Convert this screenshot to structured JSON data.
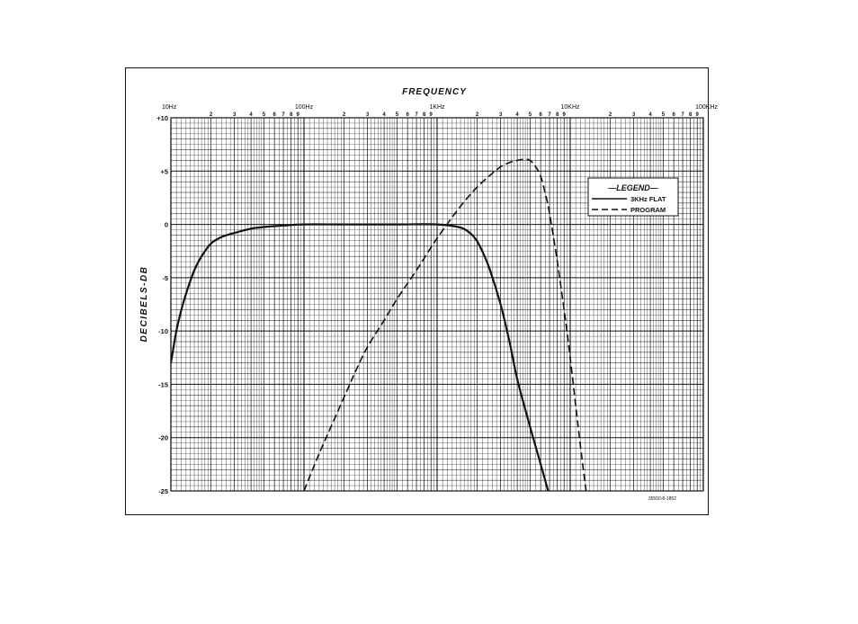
{
  "chart_data": {
    "type": "line",
    "title": "FREQUENCY",
    "ylabel": "DECIBELS-DB",
    "xlabel": "",
    "x_scale": "log",
    "xlim": [
      10,
      100000
    ],
    "ylim": [
      -25,
      10
    ],
    "grid": true,
    "x_decade_labels": [
      "10Hz",
      "100Hz",
      "1KHz",
      "10KHz",
      "100KHz"
    ],
    "x_minor_labels": [
      "2",
      "3",
      "4",
      "5",
      "6",
      "7",
      "8",
      "9"
    ],
    "y_ticks": [
      10,
      5,
      0,
      -5,
      -10,
      -15,
      -20,
      -25
    ],
    "y_tick_labels": [
      "+10",
      "+5",
      "0",
      "-5",
      "-10",
      "-15",
      "-20",
      "-25"
    ],
    "legend": {
      "title": "LEGEND",
      "placement": "top-right",
      "entries": [
        {
          "label": "3KHz FLAT",
          "style": "solid"
        },
        {
          "label": "PROGRAM",
          "style": "dashed"
        }
      ]
    },
    "annotation": "35550-8-1852",
    "series": [
      {
        "name": "3KHz FLAT",
        "style": "solid",
        "x": [
          10,
          11,
          12,
          13,
          14,
          15,
          17,
          20,
          23,
          25,
          30,
          40,
          50,
          70,
          100,
          200,
          500,
          1000,
          1500,
          1800,
          2000,
          2200,
          2500,
          3000,
          3500,
          4000,
          5000,
          6000,
          7000,
          8000
        ],
        "y": [
          -13,
          -10,
          -8,
          -6.5,
          -5.3,
          -4.3,
          -3,
          -1.8,
          -1.3,
          -1.1,
          -0.8,
          -0.4,
          -0.25,
          -0.1,
          0,
          0,
          0,
          0,
          -0.3,
          -0.9,
          -1.6,
          -2.6,
          -4.3,
          -7.5,
          -11,
          -14.5,
          -19,
          -22.5,
          -25.5,
          -28
        ]
      },
      {
        "name": "PROGRAM",
        "style": "dashed",
        "x": [
          100,
          130,
          180,
          250,
          300,
          400,
          500,
          700,
          1000,
          1500,
          2000,
          2500,
          3000,
          3500,
          4000,
          4500,
          5000,
          5500,
          6000,
          6500,
          7000,
          8000,
          9000,
          10000,
          11000,
          12000,
          13000,
          14000
        ],
        "y": [
          -25,
          -21.5,
          -17.5,
          -13.5,
          -11.5,
          -9,
          -7,
          -4.3,
          -1.3,
          1.7,
          3.5,
          4.6,
          5.4,
          5.8,
          6,
          6.1,
          6,
          5.4,
          4.5,
          2.9,
          1,
          -3.5,
          -8,
          -12.5,
          -17,
          -21,
          -24.5,
          -27.5
        ]
      }
    ]
  }
}
